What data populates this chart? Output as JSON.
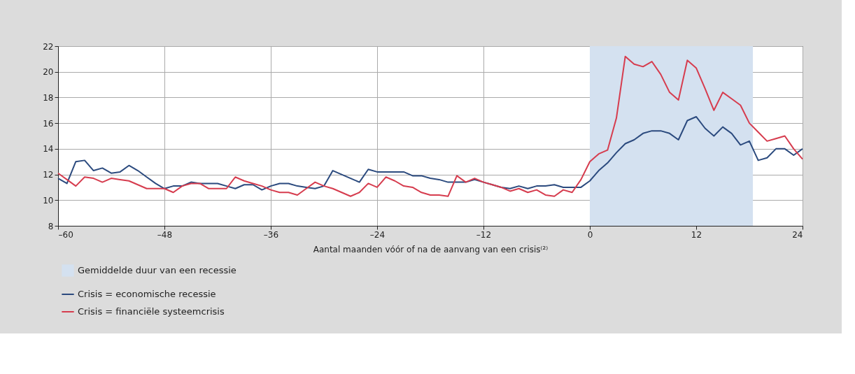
{
  "chart_data": {
    "type": "line",
    "xlabel": "Aantal maanden vóór of na de aanvang van een crisis⁽²⁾",
    "x": [
      -60,
      -59,
      -58,
      -57,
      -56,
      -55,
      -54,
      -53,
      -52,
      -51,
      -50,
      -49,
      -48,
      -47,
      -46,
      -45,
      -44,
      -43,
      -42,
      -41,
      -40,
      -39,
      -38,
      -37,
      -36,
      -35,
      -34,
      -33,
      -32,
      -31,
      -30,
      -29,
      -28,
      -27,
      -26,
      -25,
      -24,
      -23,
      -22,
      -21,
      -20,
      -19,
      -18,
      -17,
      -16,
      -15,
      -14,
      -13,
      -12,
      -11,
      -10,
      -9,
      -8,
      -7,
      -6,
      -5,
      -4,
      -3,
      -2,
      -1,
      0,
      1,
      2,
      3,
      4,
      5,
      6,
      7,
      8,
      9,
      10,
      11,
      12,
      13,
      14,
      15,
      16,
      17,
      18,
      19,
      20,
      21,
      22,
      23,
      24
    ],
    "series": [
      {
        "name": "Crisis = economische recessie",
        "color": "#2b4a7e",
        "values": [
          11.7,
          11.3,
          13.0,
          13.1,
          12.3,
          12.5,
          12.1,
          12.2,
          12.7,
          12.3,
          11.8,
          11.3,
          10.9,
          11.1,
          11.1,
          11.4,
          11.3,
          11.3,
          11.3,
          11.1,
          10.9,
          11.2,
          11.2,
          10.8,
          11.1,
          11.3,
          11.3,
          11.1,
          11.0,
          10.9,
          11.1,
          12.3,
          12.0,
          11.7,
          11.4,
          12.4,
          12.2,
          12.2,
          12.2,
          12.2,
          11.9,
          11.9,
          11.7,
          11.6,
          11.4,
          11.4,
          11.4,
          11.6,
          11.4,
          11.2,
          11.0,
          10.9,
          11.1,
          10.9,
          11.1,
          11.1,
          11.2,
          11.0,
          11.0,
          11.0,
          11.5,
          12.3,
          12.9,
          13.7,
          14.4,
          14.7,
          15.2,
          15.4,
          15.4,
          15.2,
          14.7,
          16.2,
          16.5,
          15.6,
          15.0,
          15.7,
          15.2,
          14.3,
          14.6,
          13.1,
          13.3,
          14.0,
          14.0,
          13.5,
          14.0
        ]
      },
      {
        "name": "Crisis = financiële systeemcrisis",
        "color": "#d63c4e",
        "values": [
          12.1,
          11.6,
          11.1,
          11.8,
          11.7,
          11.4,
          11.7,
          11.6,
          11.5,
          11.2,
          10.9,
          10.9,
          10.9,
          10.6,
          11.1,
          11.3,
          11.3,
          10.9,
          10.9,
          10.9,
          11.8,
          11.5,
          11.3,
          11.1,
          10.8,
          10.6,
          10.6,
          10.4,
          10.9,
          11.4,
          11.1,
          10.9,
          10.6,
          10.3,
          10.6,
          11.3,
          11.0,
          11.8,
          11.5,
          11.1,
          11.0,
          10.6,
          10.4,
          10.4,
          10.3,
          11.9,
          11.4,
          11.7,
          11.4,
          11.2,
          11.0,
          10.7,
          10.9,
          10.6,
          10.8,
          10.4,
          10.3,
          10.8,
          10.6,
          11.6,
          13.0,
          13.6,
          13.9,
          16.4,
          21.2,
          20.6,
          20.4,
          20.8,
          19.8,
          18.4,
          17.8,
          20.9,
          20.3,
          18.7,
          17.0,
          18.4,
          17.9,
          17.4,
          16.0,
          15.3,
          14.6,
          14.8,
          15.0,
          14.0,
          13.2
        ]
      }
    ],
    "bands": [
      {
        "axis": "x",
        "from": 0,
        "to": 18.4,
        "label": "Gemiddelde duur van een recessie",
        "color": "#d4e1f0"
      }
    ],
    "xlim": [
      -60,
      24
    ],
    "xticks": [
      {
        "value": -60,
        "label": "–60"
      },
      {
        "value": -48,
        "label": "–48"
      },
      {
        "value": -36,
        "label": "–36"
      },
      {
        "value": -24,
        "label": "–24"
      },
      {
        "value": -12,
        "label": "–12"
      },
      0,
      12,
      24
    ],
    "ylim": [
      8,
      22
    ],
    "yticks": [
      8,
      10,
      12,
      14,
      16,
      18,
      20,
      22
    ],
    "grid": true,
    "legend": "bottom left",
    "marker": "none",
    "line_style": "solid"
  }
}
